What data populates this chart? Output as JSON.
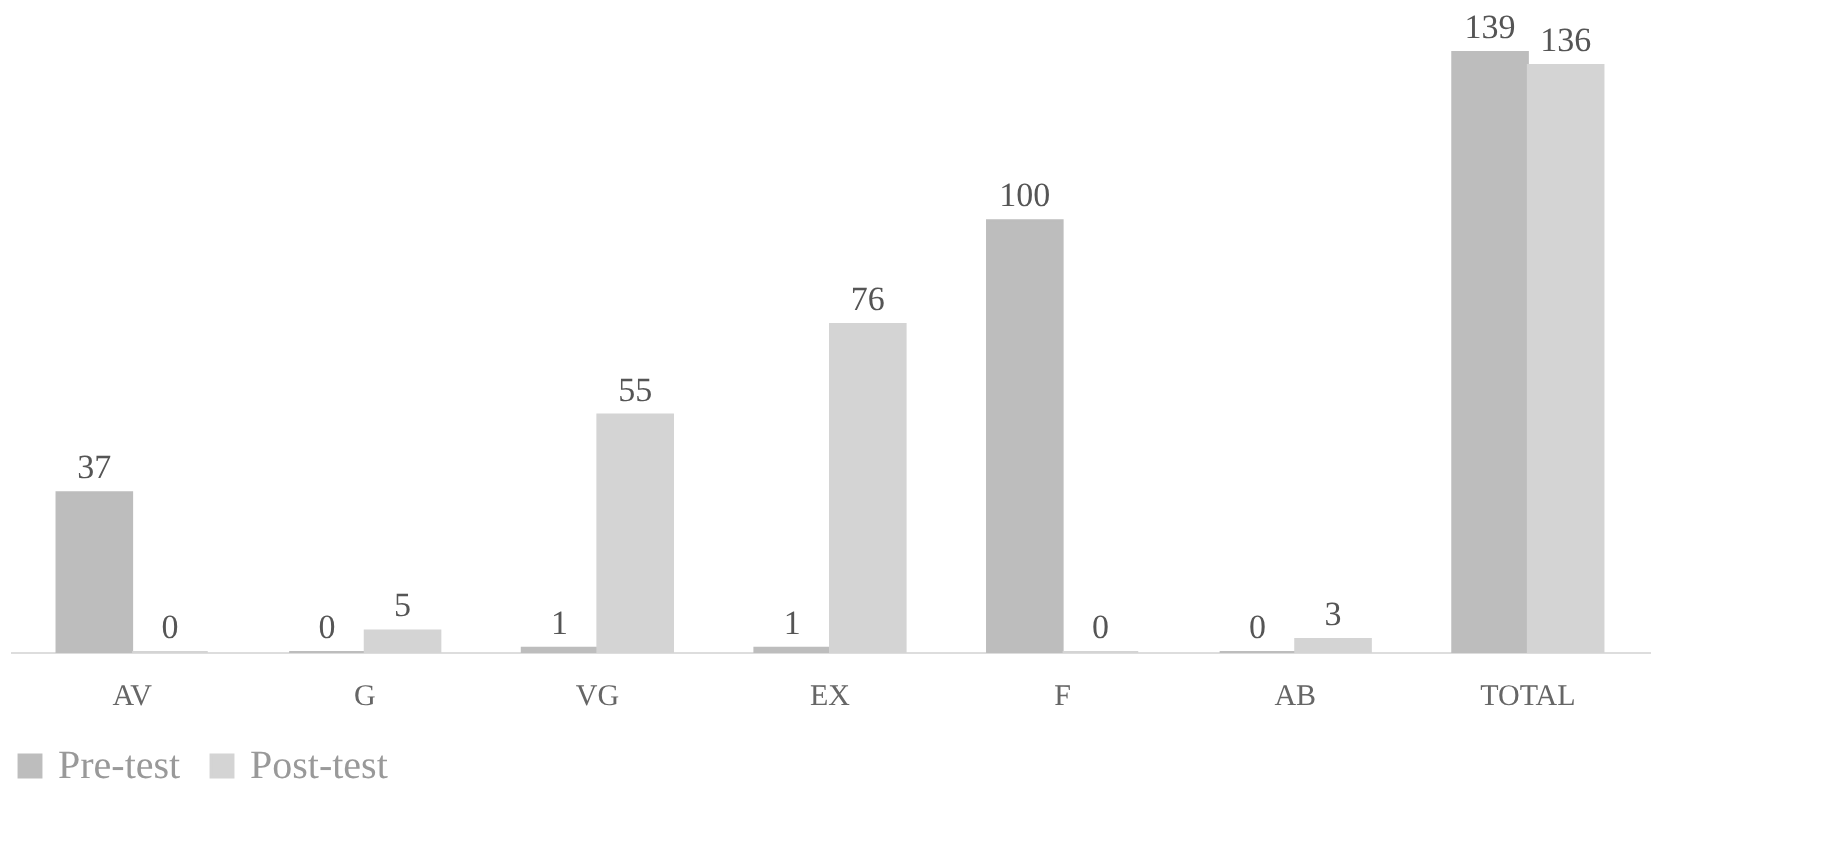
{
  "chart_data": {
    "type": "bar",
    "categories": [
      "AV",
      "G",
      "VG",
      "EX",
      "F",
      "AB",
      "TOTAL"
    ],
    "series": [
      {
        "name": "Pre-test",
        "color": "#bdbdbd",
        "values": [
          37,
          0,
          1,
          1,
          100,
          0,
          139
        ]
      },
      {
        "name": "Post-test",
        "color": "#d4d4d4",
        "values": [
          0,
          5,
          55,
          76,
          0,
          3,
          136
        ]
      }
    ],
    "data_labels": true,
    "legend": "bottom",
    "grid": false
  }
}
